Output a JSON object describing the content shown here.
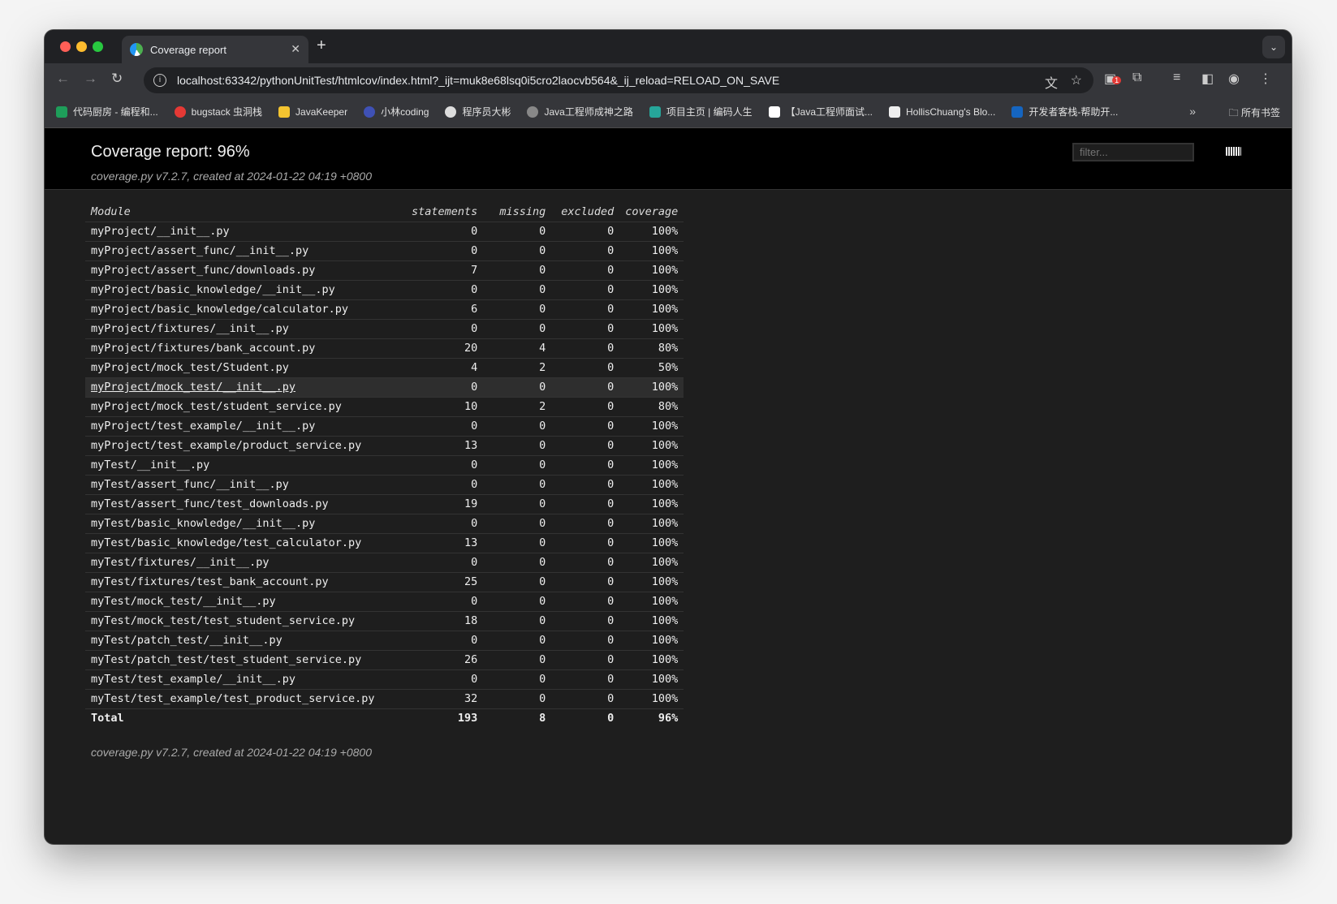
{
  "browser": {
    "tab_title": "Coverage report",
    "url": "localhost:63342/pythonUnitTest/htmlcov/index.html?_ijt=muk8e68lsq0i5cro2laocvb564&_ij_reload=RELOAD_ON_SAVE",
    "extension_badge": "1",
    "bookmarks": [
      {
        "label": "代码厨房 - 编程和...",
        "color": "#1e9e5a"
      },
      {
        "label": "bugstack 虫洞栈",
        "color": "#e53935"
      },
      {
        "label": "JavaKeeper",
        "color": "#f4c430"
      },
      {
        "label": "小林coding",
        "color": "#3f51b5"
      },
      {
        "label": "程序员大彬",
        "color": "#ddd"
      },
      {
        "label": "Java工程师成神之路",
        "color": "#888"
      },
      {
        "label": "项目主页 | 编码人生",
        "color": "#26a69a"
      },
      {
        "label": "【Java工程师面试...",
        "color": "#fff"
      },
      {
        "label": "HollisChuang's Blo...",
        "color": "#eee"
      },
      {
        "label": "开发者客栈-帮助开...",
        "color": "#1565c0"
      }
    ],
    "all_bookmarks": "所有书签"
  },
  "report": {
    "title": "Coverage report: 96%",
    "subtitle": "coverage.py v7.2.7, created at 2024-01-22 04:19 +0800",
    "filter_placeholder": "filter...",
    "columns": [
      "Module",
      "statements",
      "missing",
      "excluded",
      "coverage"
    ],
    "rows": [
      [
        "myProject/__init__.py",
        "0",
        "0",
        "0",
        "100%"
      ],
      [
        "myProject/assert_func/__init__.py",
        "0",
        "0",
        "0",
        "100%"
      ],
      [
        "myProject/assert_func/downloads.py",
        "7",
        "0",
        "0",
        "100%"
      ],
      [
        "myProject/basic_knowledge/__init__.py",
        "0",
        "0",
        "0",
        "100%"
      ],
      [
        "myProject/basic_knowledge/calculator.py",
        "6",
        "0",
        "0",
        "100%"
      ],
      [
        "myProject/fixtures/__init__.py",
        "0",
        "0",
        "0",
        "100%"
      ],
      [
        "myProject/fixtures/bank_account.py",
        "20",
        "4",
        "0",
        "80%"
      ],
      [
        "myProject/mock_test/Student.py",
        "4",
        "2",
        "0",
        "50%"
      ],
      [
        "myProject/mock_test/__init__.py",
        "0",
        "0",
        "0",
        "100%"
      ],
      [
        "myProject/mock_test/student_service.py",
        "10",
        "2",
        "0",
        "80%"
      ],
      [
        "myProject/test_example/__init__.py",
        "0",
        "0",
        "0",
        "100%"
      ],
      [
        "myProject/test_example/product_service.py",
        "13",
        "0",
        "0",
        "100%"
      ],
      [
        "myTest/__init__.py",
        "0",
        "0",
        "0",
        "100%"
      ],
      [
        "myTest/assert_func/__init__.py",
        "0",
        "0",
        "0",
        "100%"
      ],
      [
        "myTest/assert_func/test_downloads.py",
        "19",
        "0",
        "0",
        "100%"
      ],
      [
        "myTest/basic_knowledge/__init__.py",
        "0",
        "0",
        "0",
        "100%"
      ],
      [
        "myTest/basic_knowledge/test_calculator.py",
        "13",
        "0",
        "0",
        "100%"
      ],
      [
        "myTest/fixtures/__init__.py",
        "0",
        "0",
        "0",
        "100%"
      ],
      [
        "myTest/fixtures/test_bank_account.py",
        "25",
        "0",
        "0",
        "100%"
      ],
      [
        "myTest/mock_test/__init__.py",
        "0",
        "0",
        "0",
        "100%"
      ],
      [
        "myTest/mock_test/test_student_service.py",
        "18",
        "0",
        "0",
        "100%"
      ],
      [
        "myTest/patch_test/__init__.py",
        "0",
        "0",
        "0",
        "100%"
      ],
      [
        "myTest/patch_test/test_student_service.py",
        "26",
        "0",
        "0",
        "100%"
      ],
      [
        "myTest/test_example/__init__.py",
        "0",
        "0",
        "0",
        "100%"
      ],
      [
        "myTest/test_example/test_product_service.py",
        "32",
        "0",
        "0",
        "100%"
      ]
    ],
    "highlighted_row": 8,
    "total": [
      "Total",
      "193",
      "8",
      "0",
      "96%"
    ],
    "footer": "coverage.py v7.2.7, created at 2024-01-22 04:19 +0800"
  }
}
